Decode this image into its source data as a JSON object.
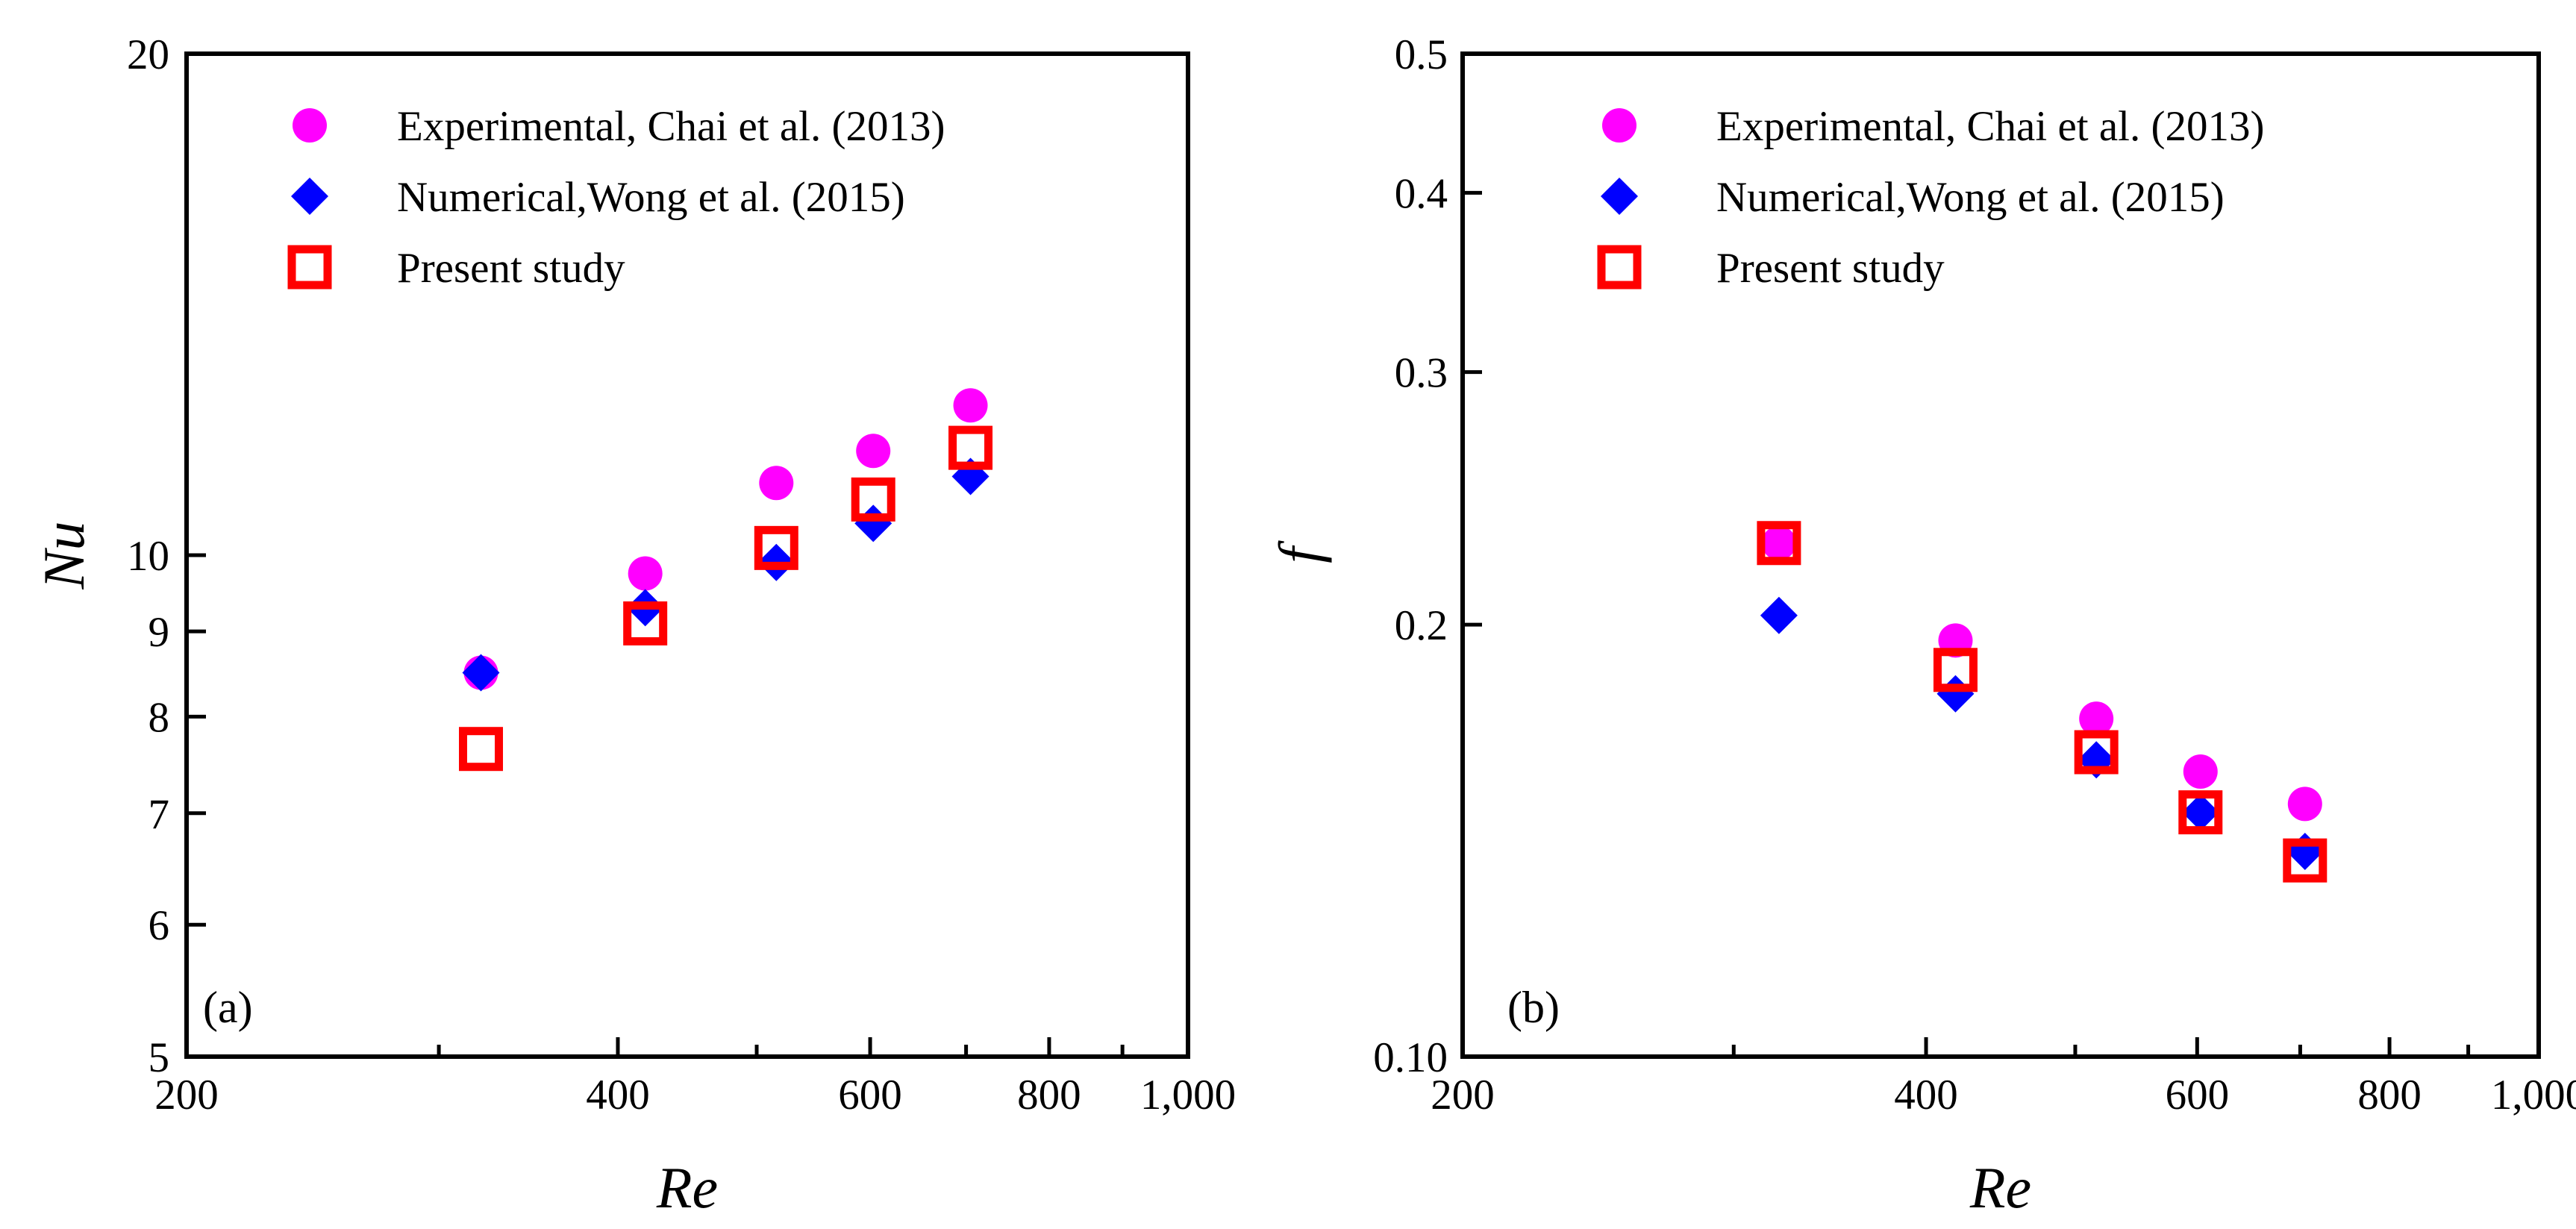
{
  "chart_data": [
    {
      "type": "scatter",
      "panel_label": "(a)",
      "xlabel": "Re",
      "ylabel": "Nu",
      "xscale": "log",
      "yscale": "log",
      "xlim": [
        200,
        1000
      ],
      "ylim": [
        5,
        20
      ],
      "xticks": [
        200,
        400,
        600,
        800,
        1000
      ],
      "xtick_labels": [
        "200",
        "400",
        "600",
        "800",
        "1,000"
      ],
      "xminor": [
        300,
        500,
        700,
        900
      ],
      "yticks": [
        5,
        6,
        7,
        8,
        9,
        10,
        20
      ],
      "ytick_labels": [
        "5",
        "6",
        "7",
        "8",
        "9",
        "10",
        "20"
      ],
      "legend_position": "top-left",
      "series": [
        {
          "name": "Experimental, Chai et al. (2013)",
          "marker": "circle",
          "color": "#ff00ff",
          "x": [
            321,
            418,
            516,
            603,
            705
          ],
          "y": [
            8.5,
            9.75,
            11.05,
            11.55,
            12.3
          ]
        },
        {
          "name": "Numerical,Wong et al. (2015)",
          "marker": "diamond",
          "color": "#0000ff",
          "x": [
            321,
            418,
            516,
            603,
            705
          ],
          "y": [
            8.5,
            9.3,
            9.9,
            10.45,
            11.15
          ]
        },
        {
          "name": "Present study",
          "marker": "square-open",
          "color": "#ff0000",
          "x": [
            321,
            418,
            516,
            603,
            705
          ],
          "y": [
            7.65,
            9.1,
            10.1,
            10.8,
            11.6
          ]
        }
      ]
    },
    {
      "type": "scatter",
      "panel_label": "(b)",
      "xlabel": "Re",
      "ylabel": "f",
      "xscale": "log",
      "yscale": "log",
      "xlim": [
        200,
        1000
      ],
      "ylim": [
        0.1,
        0.5
      ],
      "xticks": [
        200,
        400,
        600,
        800,
        1000
      ],
      "xtick_labels": [
        "200",
        "400",
        "600",
        "800",
        "1,000"
      ],
      "xminor": [
        300,
        500,
        700,
        900
      ],
      "yticks": [
        0.1,
        0.2,
        0.3,
        0.4,
        0.5
      ],
      "ytick_labels": [
        "0.10",
        "0.2",
        "0.3",
        "0.4",
        "0.5"
      ],
      "legend_position": "top-left",
      "series": [
        {
          "name": "Experimental, Chai et al. (2013)",
          "marker": "circle",
          "color": "#ff00ff",
          "x": [
            321,
            418,
            516,
            603,
            705
          ],
          "y": [
            0.228,
            0.195,
            0.172,
            0.158,
            0.15
          ]
        },
        {
          "name": "Numerical,Wong et al. (2015)",
          "marker": "diamond",
          "color": "#0000ff",
          "x": [
            321,
            418,
            516,
            603,
            705
          ],
          "y": [
            0.203,
            0.179,
            0.161,
            0.148,
            0.139
          ]
        },
        {
          "name": "Present study",
          "marker": "square-open",
          "color": "#ff0000",
          "x": [
            321,
            418,
            516,
            603,
            705
          ],
          "y": [
            0.228,
            0.186,
            0.163,
            0.148,
            0.137
          ]
        }
      ]
    }
  ]
}
